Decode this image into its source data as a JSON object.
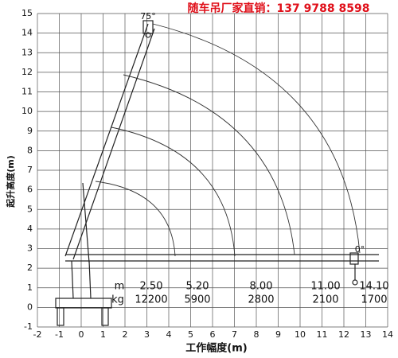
{
  "header": {
    "title": "随车吊厂家直销：137 9788 8598"
  },
  "axes": {
    "x_label": "工作幅度(m)",
    "y_label": "起升高度(m)",
    "xlim": [
      -2,
      14
    ],
    "ylim": [
      -1,
      15
    ],
    "xticks": [
      -2,
      -1,
      0,
      1,
      2,
      3,
      4,
      5,
      6,
      7,
      8,
      9,
      10,
      11,
      12,
      13,
      14
    ],
    "yticks": [
      -1,
      0,
      1,
      2,
      3,
      4,
      5,
      6,
      7,
      8,
      9,
      10,
      11,
      12,
      13,
      14,
      15
    ]
  },
  "angles": [
    "75°",
    "0°"
  ],
  "table": {
    "row_labels": [
      "m",
      "kg"
    ],
    "radius": [
      "2.50",
      "5.20",
      "8.00",
      "11.00",
      "14.10"
    ],
    "load": [
      "12200",
      "5900",
      "2800",
      "2100",
      "1700"
    ]
  }
}
